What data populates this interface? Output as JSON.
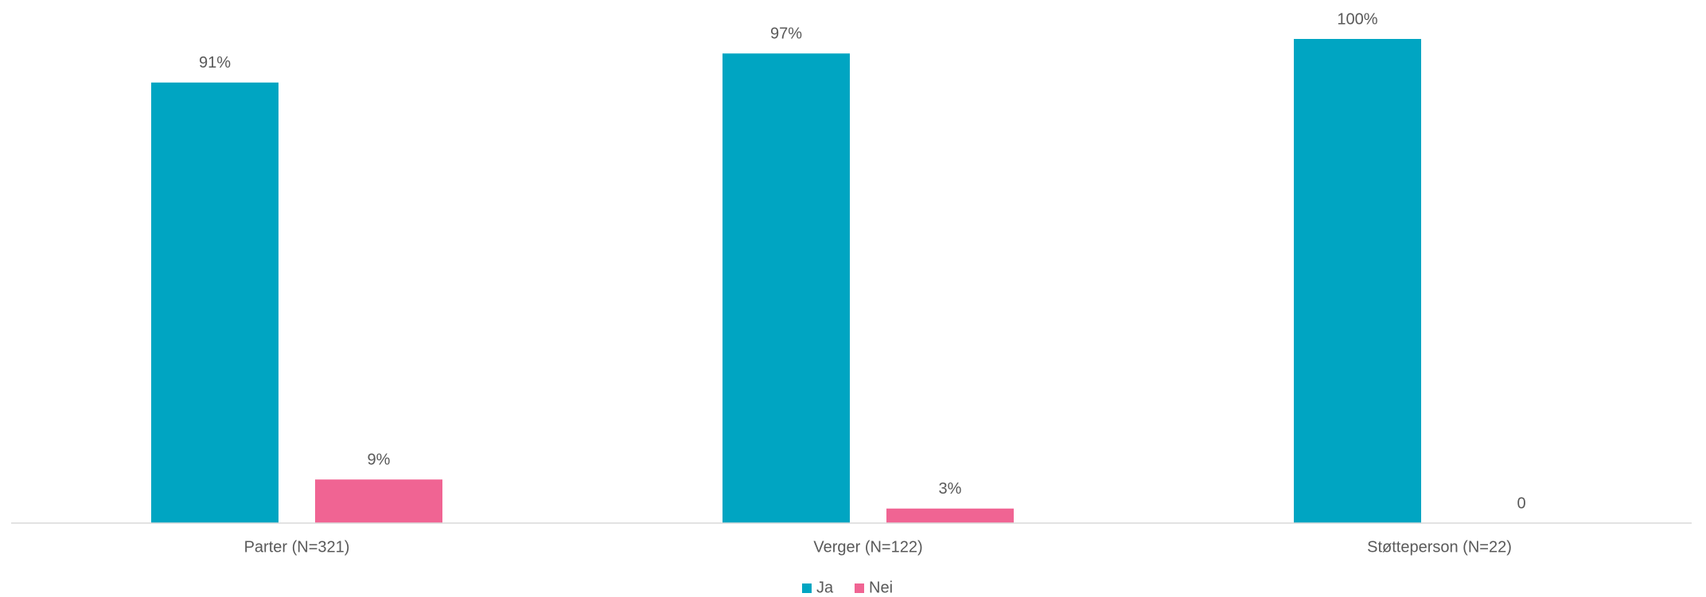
{
  "chart_data": {
    "type": "bar",
    "categories": [
      "Parter (N=321)",
      "Verger (N=122)",
      "Støtteperson (N=22)"
    ],
    "series": [
      {
        "name": "Ja",
        "color": "#00a5c2",
        "values": [
          91,
          97,
          100
        ],
        "value_labels": [
          "91%",
          "97%",
          "100%"
        ]
      },
      {
        "name": "Nei",
        "color": "#f06493",
        "values": [
          9,
          3,
          0
        ],
        "value_labels": [
          "9%",
          "3%",
          "0"
        ]
      }
    ],
    "ylim": [
      0,
      100
    ],
    "legend": "bottom"
  }
}
